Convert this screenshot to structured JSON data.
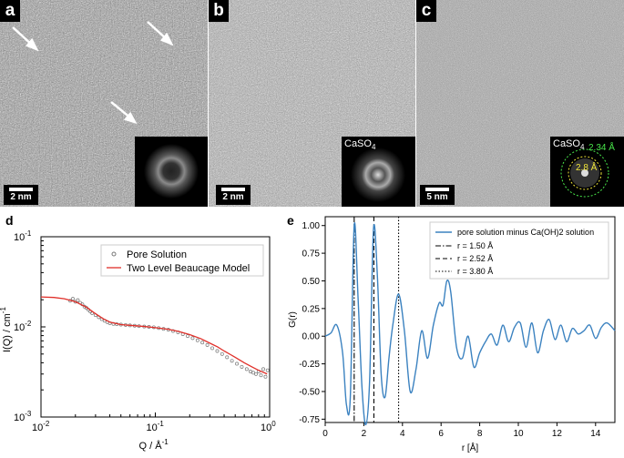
{
  "panels": {
    "a": {
      "label": "a",
      "scale_bar": "2 nm"
    },
    "b": {
      "label": "b",
      "scale_bar": "2 nm",
      "inset_label": "CaSO",
      "inset_sub": "4"
    },
    "c": {
      "label": "c",
      "scale_bar": "5 nm",
      "inset_label": "CaSO",
      "inset_sub": "4",
      "ring_outer_label": "2.34 Å",
      "ring_inner_label": "2.8 Å",
      "ring_outer_color": "#49e64b",
      "ring_inner_color": "#f0e53a"
    },
    "d": {
      "label": "d"
    },
    "e": {
      "label": "e"
    }
  },
  "chart_data": [
    {
      "panel": "d",
      "type": "scatter",
      "xlabel": "Q / Å",
      "xlabel_sup": "-1",
      "ylabel": "I(Q) / cm",
      "ylabel_sup": "-1",
      "xscale": "log",
      "yscale": "log",
      "xlim": [
        0.01,
        1
      ],
      "ylim": [
        0.001,
        0.1
      ],
      "xticks": [
        {
          "base": "10",
          "exp": "-2"
        },
        {
          "base": "10",
          "exp": "-1"
        },
        {
          "base": "10",
          "exp": "0"
        }
      ],
      "yticks": [
        {
          "base": "10",
          "exp": "-3"
        },
        {
          "base": "10",
          "exp": "-2"
        },
        {
          "base": "10",
          "exp": "-1"
        }
      ],
      "legend": [
        "Pore Solution",
        "Two Level Beaucage Model"
      ],
      "legend_position": "top-right",
      "series": [
        {
          "name": "Pore Solution",
          "style": "open-circles",
          "color": "#777777",
          "x": [
            0.018,
            0.019,
            0.02,
            0.021,
            0.022,
            0.023,
            0.024,
            0.025,
            0.026,
            0.027,
            0.028,
            0.03,
            0.032,
            0.034,
            0.036,
            0.038,
            0.04,
            0.043,
            0.046,
            0.05,
            0.055,
            0.06,
            0.066,
            0.072,
            0.08,
            0.088,
            0.097,
            0.107,
            0.118,
            0.13,
            0.143,
            0.158,
            0.174,
            0.192,
            0.212,
            0.234,
            0.258,
            0.285,
            0.315,
            0.348,
            0.384,
            0.424,
            0.468,
            0.517,
            0.571,
            0.63,
            0.68,
            0.72,
            0.76,
            0.8,
            0.84,
            0.88,
            0.92,
            0.96
          ],
          "y": [
            0.0195,
            0.0205,
            0.019,
            0.0198,
            0.0185,
            0.0178,
            0.0168,
            0.0162,
            0.0155,
            0.0148,
            0.0142,
            0.0135,
            0.0128,
            0.0122,
            0.0117,
            0.0113,
            0.011,
            0.0108,
            0.0107,
            0.0106,
            0.0105,
            0.0104,
            0.0103,
            0.0102,
            0.0101,
            0.01,
            0.0099,
            0.0097,
            0.0095,
            0.0093,
            0.009,
            0.0087,
            0.0083,
            0.0079,
            0.0075,
            0.0071,
            0.0067,
            0.0063,
            0.0058,
            0.0054,
            0.005,
            0.0046,
            0.0042,
            0.0039,
            0.0036,
            0.0034,
            0.0032,
            0.0031,
            0.003,
            0.0032,
            0.0029,
            0.0034,
            0.0028,
            0.0033
          ]
        },
        {
          "name": "Two Level Beaucage Model",
          "style": "line",
          "color": "#e0302a",
          "x": [
            0.01,
            0.013,
            0.016,
            0.02,
            0.025,
            0.03,
            0.035,
            0.04,
            0.05,
            0.06,
            0.08,
            0.1,
            0.13,
            0.16,
            0.2,
            0.25,
            0.3,
            0.35,
            0.4,
            0.5,
            0.6,
            0.7,
            0.8,
            0.9,
            0.95
          ],
          "y": [
            0.0215,
            0.0212,
            0.0205,
            0.019,
            0.0165,
            0.014,
            0.0123,
            0.0113,
            0.0106,
            0.0104,
            0.0101,
            0.0098,
            0.0094,
            0.0089,
            0.0082,
            0.0074,
            0.0066,
            0.006,
            0.0054,
            0.0046,
            0.004,
            0.0036,
            0.0033,
            0.0031,
            0.003
          ]
        }
      ]
    },
    {
      "panel": "e",
      "type": "line",
      "xlabel": "r [Å]",
      "ylabel": "G(r)",
      "xlim": [
        0,
        15
      ],
      "ylim": [
        -0.78,
        1.08
      ],
      "xticks": [
        "0",
        "2",
        "4",
        "6",
        "8",
        "10",
        "12",
        "14"
      ],
      "yticks": [
        "-0.75",
        "-0.50",
        "-0.25",
        "0.00",
        "0.25",
        "0.50",
        "0.75",
        "1.00"
      ],
      "legend_position": "top-right",
      "series": [
        {
          "name": "pore solution minus Ca(OH)2 solution",
          "color": "#3b82c0",
          "x": [
            0.0,
            0.3,
            0.6,
            0.9,
            1.1,
            1.3,
            1.5,
            1.7,
            1.9,
            2.1,
            2.3,
            2.5,
            2.7,
            2.9,
            3.1,
            3.3,
            3.5,
            3.8,
            4.1,
            4.4,
            4.7,
            5.0,
            5.3,
            5.6,
            5.9,
            6.1,
            6.3,
            6.5,
            6.8,
            7.1,
            7.4,
            7.7,
            8.0,
            8.3,
            8.6,
            8.9,
            9.2,
            9.5,
            9.8,
            10.1,
            10.4,
            10.7,
            11.0,
            11.3,
            11.6,
            11.9,
            12.2,
            12.5,
            12.8,
            13.1,
            13.4,
            13.7,
            14.0,
            14.3,
            14.6,
            15.0
          ],
          "y": [
            0.0,
            0.03,
            0.1,
            -0.15,
            -0.62,
            -0.55,
            1.0,
            0.35,
            -0.45,
            -0.8,
            -0.4,
            0.97,
            0.55,
            -0.35,
            -0.55,
            -0.2,
            0.1,
            0.38,
            0.05,
            -0.5,
            -0.3,
            0.05,
            -0.2,
            0.1,
            0.3,
            0.28,
            0.5,
            0.4,
            -0.1,
            -0.2,
            0.0,
            -0.28,
            -0.15,
            -0.05,
            0.02,
            -0.08,
            0.1,
            -0.05,
            0.08,
            0.12,
            -0.1,
            0.12,
            -0.15,
            0.05,
            0.15,
            -0.03,
            0.1,
            -0.05,
            0.07,
            0.02,
            0.05,
            0.1,
            -0.02,
            0.08,
            0.12,
            0.05
          ]
        }
      ],
      "vlines": [
        {
          "name": "r = 1.50 Å",
          "x": 1.5,
          "style": "dashdot"
        },
        {
          "name": "r = 2.52 Å",
          "x": 2.52,
          "style": "dashed"
        },
        {
          "name": "r = 3.80 Å",
          "x": 3.8,
          "style": "dotted"
        }
      ]
    }
  ]
}
